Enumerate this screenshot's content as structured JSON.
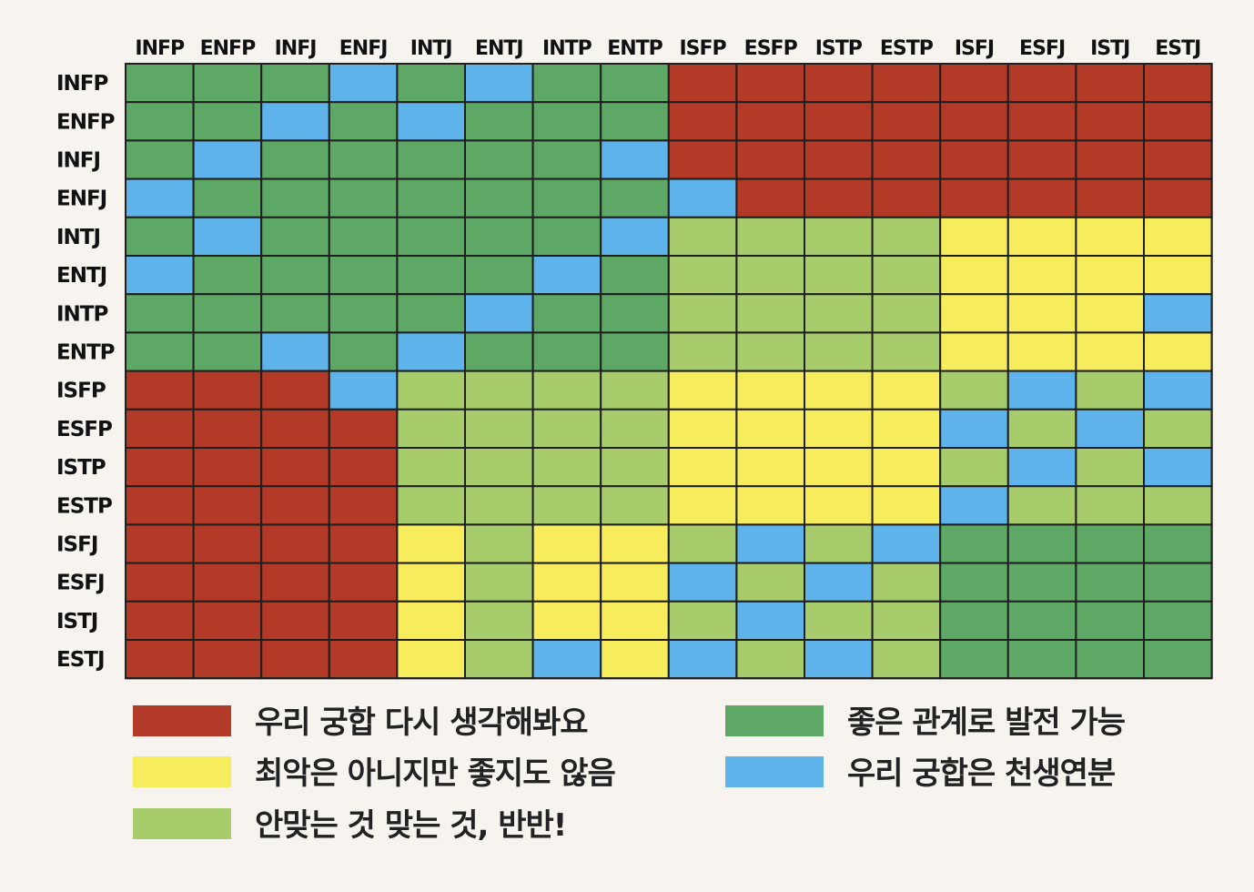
{
  "chart_data": {
    "type": "heatmap",
    "title": "",
    "xlabel": "",
    "ylabel": "",
    "x_categories": [
      "INFP",
      "ENFP",
      "INFJ",
      "ENFJ",
      "INTJ",
      "ENTJ",
      "INTP",
      "ENTP",
      "ISFP",
      "ESFP",
      "ISTP",
      "ESTP",
      "ISFJ",
      "ESFJ",
      "ISTJ",
      "ESTJ"
    ],
    "y_categories": [
      "INFP",
      "ENFP",
      "INFJ",
      "ENFJ",
      "INTJ",
      "ENTJ",
      "INTP",
      "ENTP",
      "ISFP",
      "ESFP",
      "ISTP",
      "ESTP",
      "ISFJ",
      "ESFJ",
      "ISTJ",
      "ESTJ"
    ],
    "levels": {
      "R": {
        "label": "우리 궁합 다시 생각해봐요",
        "color": "#b23a26"
      },
      "Y": {
        "label": "최악은 아니지만 좋지도 않음",
        "color": "#f6ec5c"
      },
      "L": {
        "label": "안맞는 것 맞는 것, 반반!",
        "color": "#a6cc6c"
      },
      "G": {
        "label": "좋은 관계로 발전 가능",
        "color": "#5ea866"
      },
      "B": {
        "label": "우리 궁합은 천생연분",
        "color": "#5db3ea"
      }
    },
    "legend_order_left": [
      "R",
      "Y",
      "L"
    ],
    "legend_order_right": [
      "G",
      "B"
    ],
    "grid": [
      [
        "G",
        "G",
        "G",
        "B",
        "G",
        "B",
        "G",
        "G",
        "R",
        "R",
        "R",
        "R",
        "R",
        "R",
        "R",
        "R"
      ],
      [
        "G",
        "G",
        "B",
        "G",
        "B",
        "G",
        "G",
        "G",
        "R",
        "R",
        "R",
        "R",
        "R",
        "R",
        "R",
        "R"
      ],
      [
        "G",
        "B",
        "G",
        "G",
        "G",
        "G",
        "G",
        "B",
        "R",
        "R",
        "R",
        "R",
        "R",
        "R",
        "R",
        "R"
      ],
      [
        "B",
        "G",
        "G",
        "G",
        "G",
        "G",
        "G",
        "G",
        "B",
        "R",
        "R",
        "R",
        "R",
        "R",
        "R",
        "R"
      ],
      [
        "G",
        "B",
        "G",
        "G",
        "G",
        "G",
        "G",
        "B",
        "L",
        "L",
        "L",
        "L",
        "Y",
        "Y",
        "Y",
        "Y"
      ],
      [
        "B",
        "G",
        "G",
        "G",
        "G",
        "G",
        "B",
        "G",
        "L",
        "L",
        "L",
        "L",
        "Y",
        "Y",
        "Y",
        "Y"
      ],
      [
        "G",
        "G",
        "G",
        "G",
        "G",
        "B",
        "G",
        "G",
        "L",
        "L",
        "L",
        "L",
        "Y",
        "Y",
        "Y",
        "B"
      ],
      [
        "G",
        "G",
        "B",
        "G",
        "B",
        "G",
        "G",
        "G",
        "L",
        "L",
        "L",
        "L",
        "Y",
        "Y",
        "Y",
        "Y"
      ],
      [
        "R",
        "R",
        "R",
        "B",
        "L",
        "L",
        "L",
        "L",
        "Y",
        "Y",
        "Y",
        "Y",
        "L",
        "B",
        "L",
        "B"
      ],
      [
        "R",
        "R",
        "R",
        "R",
        "L",
        "L",
        "L",
        "L",
        "Y",
        "Y",
        "Y",
        "Y",
        "B",
        "L",
        "B",
        "L"
      ],
      [
        "R",
        "R",
        "R",
        "R",
        "L",
        "L",
        "L",
        "L",
        "Y",
        "Y",
        "Y",
        "Y",
        "L",
        "B",
        "L",
        "B"
      ],
      [
        "R",
        "R",
        "R",
        "R",
        "L",
        "L",
        "L",
        "L",
        "Y",
        "Y",
        "Y",
        "Y",
        "B",
        "L",
        "L",
        "L"
      ],
      [
        "R",
        "R",
        "R",
        "R",
        "Y",
        "L",
        "Y",
        "Y",
        "L",
        "B",
        "L",
        "B",
        "G",
        "G",
        "G",
        "G"
      ],
      [
        "R",
        "R",
        "R",
        "R",
        "Y",
        "L",
        "Y",
        "Y",
        "B",
        "L",
        "B",
        "L",
        "G",
        "G",
        "G",
        "G"
      ],
      [
        "R",
        "R",
        "R",
        "R",
        "Y",
        "L",
        "Y",
        "Y",
        "L",
        "B",
        "L",
        "L",
        "G",
        "G",
        "G",
        "G"
      ],
      [
        "R",
        "R",
        "R",
        "R",
        "Y",
        "L",
        "B",
        "Y",
        "B",
        "L",
        "B",
        "L",
        "G",
        "G",
        "G",
        "G"
      ]
    ]
  }
}
